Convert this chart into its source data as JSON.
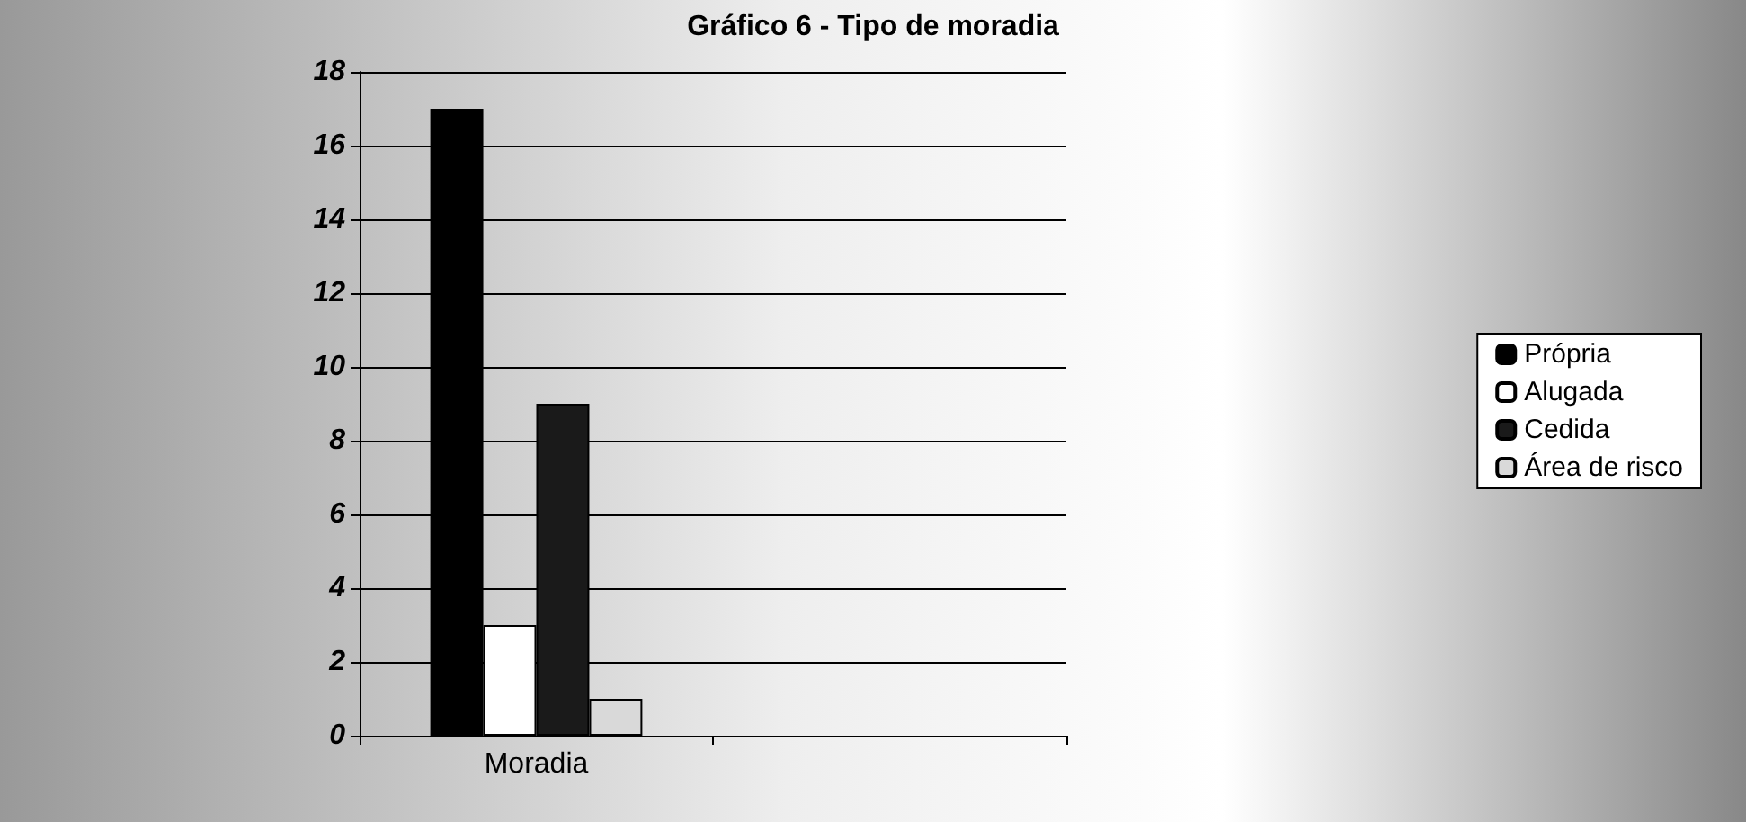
{
  "chart_data": {
    "type": "bar",
    "title": "Gráfico 6 - Tipo de moradia",
    "categories": [
      "Moradia",
      null
    ],
    "series": [
      {
        "name": "Própria",
        "color": "#000000",
        "values": [
          17,
          null
        ]
      },
      {
        "name": "Alugada",
        "color": "#ffffff",
        "values": [
          3,
          null
        ]
      },
      {
        "name": "Cedida",
        "color": "#1a1a1a",
        "values": [
          9,
          null
        ]
      },
      {
        "name": "Área de risco",
        "color": "#d9d9d9",
        "values": [
          1,
          null
        ]
      }
    ],
    "ylim": [
      0,
      18
    ],
    "yticks": [
      0,
      2,
      4,
      6,
      8,
      10,
      12,
      14,
      16,
      18
    ],
    "grid": "y",
    "legend": "right"
  }
}
